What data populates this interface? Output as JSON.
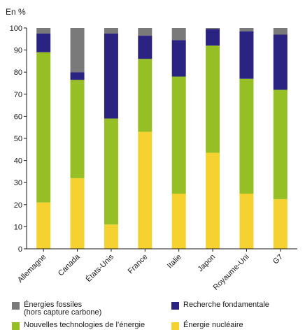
{
  "chart_data": {
    "type": "bar",
    "stacked": true,
    "ylabel": "En %",
    "ylim": [
      0,
      100
    ],
    "yticks": [
      0,
      10,
      20,
      30,
      40,
      50,
      60,
      70,
      80,
      90,
      100
    ],
    "grid": false,
    "legend_position": "bottom",
    "categories": [
      "Allemagne",
      "Canada",
      "États-Unis",
      "France",
      "Italie",
      "Japon",
      "Royaume-Uni",
      "G7"
    ],
    "series": [
      {
        "name": "Énergie nucléaire",
        "color": "#f5d230",
        "values": [
          21,
          32,
          11,
          53,
          25,
          43.5,
          25,
          22.5
        ]
      },
      {
        "name": "Nouvelles technologies de l’énergie",
        "color": "#95bf24",
        "values": [
          68,
          44.5,
          48,
          33,
          53,
          48.5,
          52,
          49.5
        ]
      },
      {
        "name": "Recherche fondamentale",
        "color": "#2a2381",
        "values": [
          8.5,
          3.5,
          38.5,
          10.5,
          16.5,
          7.5,
          21.5,
          25
        ]
      },
      {
        "name": "Énergies fossiles\n(hors capture carbone)",
        "color": "#7a7a7a",
        "values": [
          2.5,
          20,
          2.5,
          3.5,
          5.5,
          0.5,
          1.5,
          3
        ]
      }
    ]
  }
}
